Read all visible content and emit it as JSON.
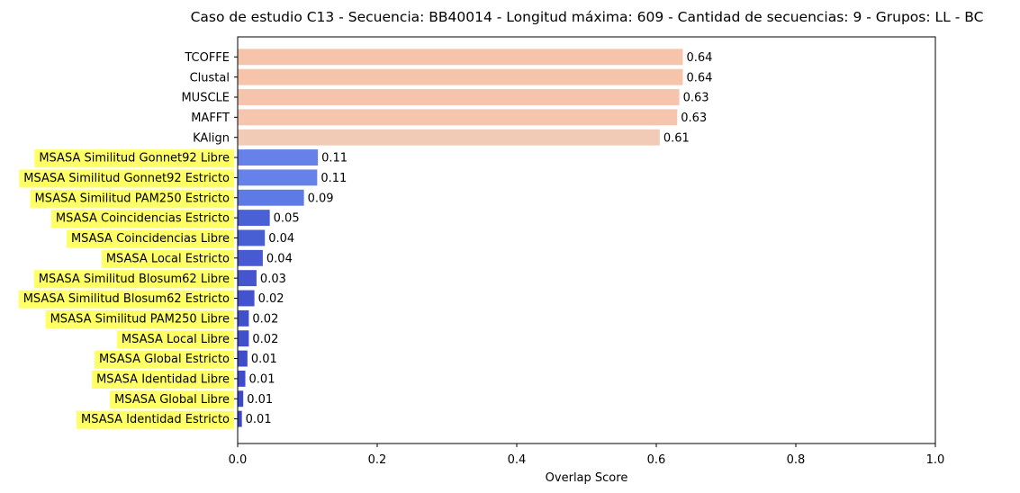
{
  "chart_data": {
    "type": "bar",
    "orientation": "horizontal",
    "title": "Caso de estudio C13 - Secuencia: BB40014 - Longitud máxima: 609 - Cantidad de secuencias: 9 - Grupos: LL - BC",
    "xlabel": "Overlap Score",
    "ylabel": "",
    "xlim": [
      0,
      1.0
    ],
    "xticks": [
      "0.0",
      "0.2",
      "0.4",
      "0.6",
      "0.8",
      "1.0"
    ],
    "grid": false,
    "highlight_color": "#ffff66",
    "categories": [
      "TCOFFE",
      "Clustal",
      "MUSCLE",
      "MAFFT",
      "KAlign",
      "MSASA Similitud Gonnet92 Libre",
      "MSASA Similitud Gonnet92 Estricto",
      "MSASA Similitud PAM250 Estricto",
      "MSASA Coincidencias Estricto",
      "MSASA Coincidencias Libre",
      "MSASA Local Estricto",
      "MSASA Similitud Blosum62 Libre",
      "MSASA Similitud Blosum62 Estricto",
      "MSASA Similitud PAM250 Libre",
      "MSASA Local Libre",
      "MSASA Global Estricto",
      "MSASA Identidad Libre",
      "MSASA Global Libre",
      "MSASA Identidad Estricto"
    ],
    "values": [
      0.638,
      0.638,
      0.633,
      0.63,
      0.605,
      0.115,
      0.114,
      0.095,
      0.046,
      0.039,
      0.036,
      0.027,
      0.024,
      0.016,
      0.016,
      0.014,
      0.011,
      0.008,
      0.006
    ],
    "value_labels": [
      "0.64",
      "0.64",
      "0.63",
      "0.63",
      "0.61",
      "0.11",
      "0.11",
      "0.09",
      "0.05",
      "0.04",
      "0.04",
      "0.03",
      "0.02",
      "0.02",
      "0.02",
      "0.01",
      "0.01",
      "0.01",
      "0.01"
    ],
    "highlighted": [
      false,
      false,
      false,
      false,
      false,
      true,
      true,
      true,
      true,
      true,
      true,
      true,
      true,
      true,
      true,
      true,
      true,
      true,
      true
    ],
    "colors": [
      "#f6c3ab",
      "#f6c3ab",
      "#f6c4ac",
      "#f6c5ad",
      "#f2cbb7",
      "#6682ea",
      "#6682ea",
      "#5e7ae5",
      "#4a61d5",
      "#485ed3",
      "#475ad1",
      "#4455cf",
      "#4353ce",
      "#404fcc",
      "#404fcc",
      "#3f4dcb",
      "#3e4bca",
      "#3c49c8",
      "#3b46c7"
    ]
  }
}
